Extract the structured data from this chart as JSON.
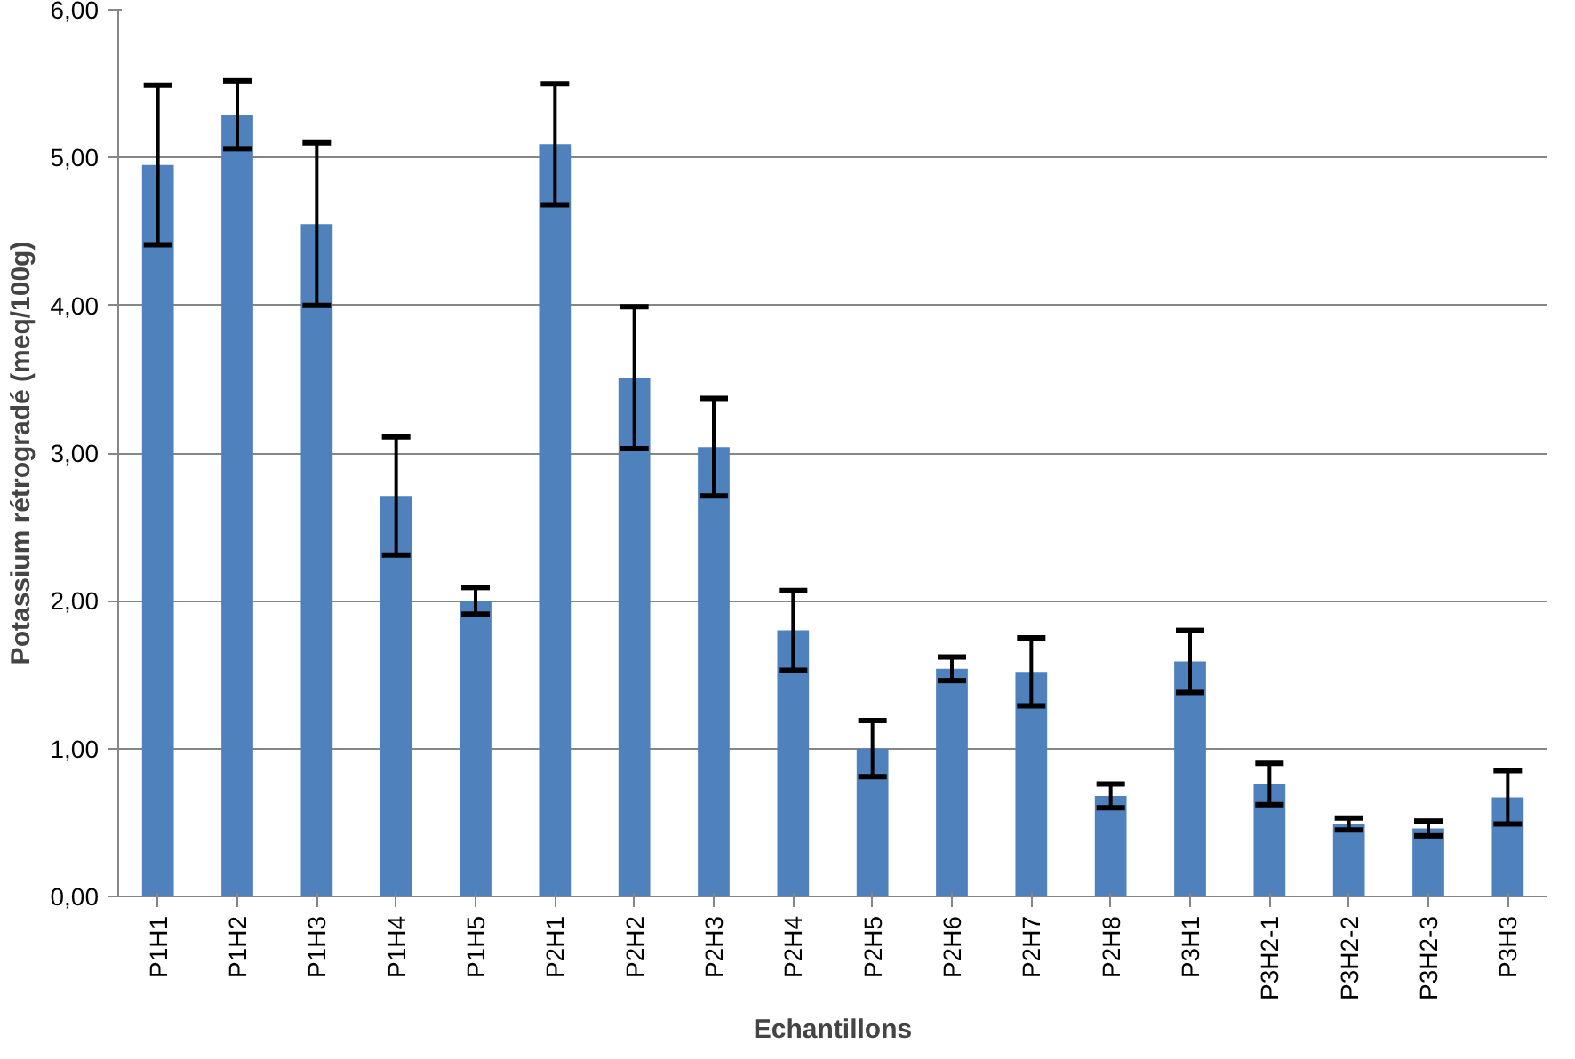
{
  "chart_data": {
    "type": "bar",
    "xlabel": "Echantillons",
    "ylabel": "Potassium rétrogradé (meq/100g)",
    "categories": [
      "P1H1",
      "P1H2",
      "P1H3",
      "P1H4",
      "P1H5",
      "P2H1",
      "P2H2",
      "P2H3",
      "P2H4",
      "P2H5",
      "P2H6",
      "P2H7",
      "P2H8",
      "P3H1",
      "P3H2-1",
      "P3H2-2",
      "P3H2-3",
      "P3H3"
    ],
    "values": [
      4.95,
      5.29,
      4.55,
      2.71,
      2.0,
      5.09,
      3.51,
      3.04,
      1.8,
      1.0,
      1.54,
      1.52,
      0.68,
      1.59,
      0.76,
      0.49,
      0.46,
      0.67
    ],
    "errors": [
      0.54,
      0.23,
      0.55,
      0.4,
      0.09,
      0.41,
      0.48,
      0.33,
      0.27,
      0.19,
      0.08,
      0.23,
      0.08,
      0.21,
      0.14,
      0.04,
      0.05,
      0.18
    ],
    "color": "#4f81bd",
    "ylim": [
      0,
      6
    ],
    "yticks": [
      {
        "value": 0,
        "label": "0,00"
      },
      {
        "value": 1,
        "label": "1,00"
      },
      {
        "value": 2,
        "label": "2,00"
      },
      {
        "value": 3,
        "label": "3,00"
      },
      {
        "value": 4,
        "label": "4,00"
      },
      {
        "value": 5,
        "label": "5,00"
      },
      {
        "value": 6,
        "label": "6,00"
      }
    ],
    "grid": "y"
  }
}
